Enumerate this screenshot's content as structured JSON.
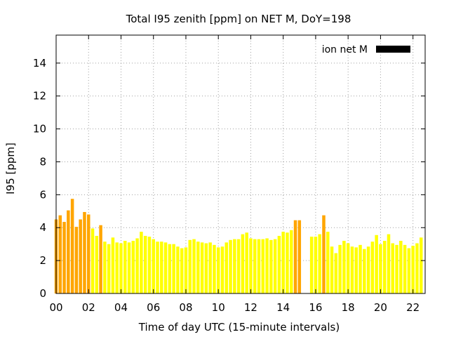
{
  "chart_data": {
    "type": "bar",
    "title": "Total I95 zenith [ppm] on NET M, DoY=198",
    "xlabel": "Time of day UTC (15-minute intervals)",
    "ylabel": "I95 [ppm]",
    "xlim": [
      0,
      22.75
    ],
    "ylim": [
      0,
      15.7
    ],
    "xticks": [
      "00",
      "02",
      "04",
      "06",
      "08",
      "10",
      "12",
      "14",
      "16",
      "18",
      "20",
      "22"
    ],
    "xtick_values": [
      0,
      2,
      4,
      6,
      8,
      10,
      12,
      14,
      16,
      18,
      20,
      22
    ],
    "yticks": [
      0,
      2,
      4,
      6,
      8,
      10,
      12,
      14
    ],
    "grid": true,
    "legend": {
      "label": "ion net M",
      "color": "#000000",
      "position": "top-right"
    },
    "colors": {
      "orange": "#ffa500",
      "yellow": "#ffff00"
    },
    "bars": [
      {
        "x": 0.0,
        "y": 4.5,
        "c": "orange"
      },
      {
        "x": 0.25,
        "y": 4.75,
        "c": "orange"
      },
      {
        "x": 0.5,
        "y": 4.35,
        "c": "orange"
      },
      {
        "x": 0.75,
        "y": 5.05,
        "c": "orange"
      },
      {
        "x": 1.0,
        "y": 5.75,
        "c": "orange"
      },
      {
        "x": 1.25,
        "y": 4.05,
        "c": "orange"
      },
      {
        "x": 1.5,
        "y": 4.5,
        "c": "orange"
      },
      {
        "x": 1.75,
        "y": 4.95,
        "c": "orange"
      },
      {
        "x": 2.0,
        "y": 4.8,
        "c": "orange"
      },
      {
        "x": 2.25,
        "y": 3.95,
        "c": "yellow"
      },
      {
        "x": 2.5,
        "y": 3.5,
        "c": "yellow"
      },
      {
        "x": 2.75,
        "y": 4.15,
        "c": "orange"
      },
      {
        "x": 3.0,
        "y": 3.15,
        "c": "yellow"
      },
      {
        "x": 3.25,
        "y": 3.0,
        "c": "yellow"
      },
      {
        "x": 3.5,
        "y": 3.4,
        "c": "yellow"
      },
      {
        "x": 3.75,
        "y": 3.1,
        "c": "yellow"
      },
      {
        "x": 4.0,
        "y": 3.05,
        "c": "yellow"
      },
      {
        "x": 4.25,
        "y": 3.2,
        "c": "yellow"
      },
      {
        "x": 4.5,
        "y": 3.1,
        "c": "yellow"
      },
      {
        "x": 4.75,
        "y": 3.2,
        "c": "yellow"
      },
      {
        "x": 5.0,
        "y": 3.35,
        "c": "yellow"
      },
      {
        "x": 5.25,
        "y": 3.75,
        "c": "yellow"
      },
      {
        "x": 5.5,
        "y": 3.5,
        "c": "yellow"
      },
      {
        "x": 5.75,
        "y": 3.45,
        "c": "yellow"
      },
      {
        "x": 6.0,
        "y": 3.3,
        "c": "yellow"
      },
      {
        "x": 6.25,
        "y": 3.15,
        "c": "yellow"
      },
      {
        "x": 6.5,
        "y": 3.15,
        "c": "yellow"
      },
      {
        "x": 6.75,
        "y": 3.1,
        "c": "yellow"
      },
      {
        "x": 7.0,
        "y": 3.0,
        "c": "yellow"
      },
      {
        "x": 7.25,
        "y": 3.0,
        "c": "yellow"
      },
      {
        "x": 7.5,
        "y": 2.85,
        "c": "yellow"
      },
      {
        "x": 7.75,
        "y": 2.75,
        "c": "yellow"
      },
      {
        "x": 8.0,
        "y": 2.8,
        "c": "yellow"
      },
      {
        "x": 8.25,
        "y": 3.25,
        "c": "yellow"
      },
      {
        "x": 8.5,
        "y": 3.3,
        "c": "yellow"
      },
      {
        "x": 8.75,
        "y": 3.15,
        "c": "yellow"
      },
      {
        "x": 9.0,
        "y": 3.1,
        "c": "yellow"
      },
      {
        "x": 9.25,
        "y": 3.05,
        "c": "yellow"
      },
      {
        "x": 9.5,
        "y": 3.1,
        "c": "yellow"
      },
      {
        "x": 9.75,
        "y": 2.95,
        "c": "yellow"
      },
      {
        "x": 10.0,
        "y": 2.8,
        "c": "yellow"
      },
      {
        "x": 10.25,
        "y": 2.85,
        "c": "yellow"
      },
      {
        "x": 10.5,
        "y": 3.1,
        "c": "yellow"
      },
      {
        "x": 10.75,
        "y": 3.25,
        "c": "yellow"
      },
      {
        "x": 11.0,
        "y": 3.3,
        "c": "yellow"
      },
      {
        "x": 11.25,
        "y": 3.3,
        "c": "yellow"
      },
      {
        "x": 11.5,
        "y": 3.6,
        "c": "yellow"
      },
      {
        "x": 11.75,
        "y": 3.7,
        "c": "yellow"
      },
      {
        "x": 12.0,
        "y": 3.35,
        "c": "yellow"
      },
      {
        "x": 12.25,
        "y": 3.3,
        "c": "yellow"
      },
      {
        "x": 12.5,
        "y": 3.3,
        "c": "yellow"
      },
      {
        "x": 12.75,
        "y": 3.3,
        "c": "yellow"
      },
      {
        "x": 13.0,
        "y": 3.35,
        "c": "yellow"
      },
      {
        "x": 13.25,
        "y": 3.25,
        "c": "yellow"
      },
      {
        "x": 13.5,
        "y": 3.3,
        "c": "yellow"
      },
      {
        "x": 13.75,
        "y": 3.5,
        "c": "yellow"
      },
      {
        "x": 14.0,
        "y": 3.75,
        "c": "yellow"
      },
      {
        "x": 14.25,
        "y": 3.7,
        "c": "yellow"
      },
      {
        "x": 14.5,
        "y": 3.85,
        "c": "yellow"
      },
      {
        "x": 14.75,
        "y": 4.45,
        "c": "orange"
      },
      {
        "x": 15.0,
        "y": 4.45,
        "c": "orange"
      },
      {
        "x": 15.75,
        "y": 3.45,
        "c": "yellow"
      },
      {
        "x": 16.0,
        "y": 3.45,
        "c": "yellow"
      },
      {
        "x": 16.25,
        "y": 3.6,
        "c": "yellow"
      },
      {
        "x": 16.5,
        "y": 4.75,
        "c": "orange"
      },
      {
        "x": 16.75,
        "y": 3.75,
        "c": "yellow"
      },
      {
        "x": 17.0,
        "y": 2.85,
        "c": "yellow"
      },
      {
        "x": 17.25,
        "y": 2.45,
        "c": "yellow"
      },
      {
        "x": 17.5,
        "y": 2.95,
        "c": "yellow"
      },
      {
        "x": 17.75,
        "y": 3.2,
        "c": "yellow"
      },
      {
        "x": 18.0,
        "y": 3.05,
        "c": "yellow"
      },
      {
        "x": 18.25,
        "y": 2.85,
        "c": "yellow"
      },
      {
        "x": 18.5,
        "y": 2.8,
        "c": "yellow"
      },
      {
        "x": 18.75,
        "y": 2.95,
        "c": "yellow"
      },
      {
        "x": 19.0,
        "y": 2.7,
        "c": "yellow"
      },
      {
        "x": 19.25,
        "y": 2.85,
        "c": "yellow"
      },
      {
        "x": 19.5,
        "y": 3.15,
        "c": "yellow"
      },
      {
        "x": 19.75,
        "y": 3.55,
        "c": "yellow"
      },
      {
        "x": 20.0,
        "y": 3.0,
        "c": "yellow"
      },
      {
        "x": 20.25,
        "y": 3.2,
        "c": "yellow"
      },
      {
        "x": 20.5,
        "y": 3.6,
        "c": "yellow"
      },
      {
        "x": 20.75,
        "y": 3.05,
        "c": "yellow"
      },
      {
        "x": 21.0,
        "y": 2.95,
        "c": "yellow"
      },
      {
        "x": 21.25,
        "y": 3.2,
        "c": "yellow"
      },
      {
        "x": 21.5,
        "y": 2.95,
        "c": "yellow"
      },
      {
        "x": 21.75,
        "y": 2.75,
        "c": "yellow"
      },
      {
        "x": 22.0,
        "y": 2.9,
        "c": "yellow"
      },
      {
        "x": 22.25,
        "y": 3.05,
        "c": "yellow"
      },
      {
        "x": 22.5,
        "y": 3.4,
        "c": "yellow"
      }
    ]
  }
}
